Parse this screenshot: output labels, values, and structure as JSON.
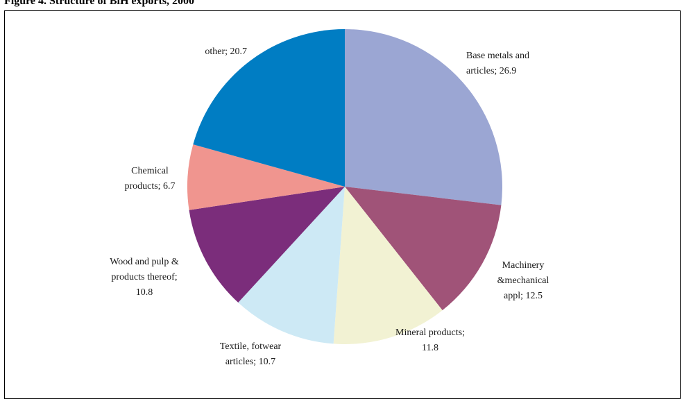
{
  "figure_title": "Figure 4. Structure of BiH exports, 2000",
  "chart_data": {
    "type": "pie",
    "title": "Figure 4. Structure of BiH exports, 2000",
    "start": "12 o'clock",
    "direction": "clockwise",
    "legend": "none",
    "slices": [
      {
        "name": "Base metals and articles",
        "value": 26.9,
        "color": "#9BA6D3",
        "label_lines": [
          "Base metals and",
          "articles; 26.9"
        ],
        "anchor": "start"
      },
      {
        "name": "Machinery &mechanical appl",
        "value": 12.5,
        "color": "#A05378",
        "label_lines": [
          "Machinery",
          "&mechanical",
          "appl; 12.5"
        ],
        "anchor": "middle"
      },
      {
        "name": "Mineral products",
        "value": 11.8,
        "color": "#F2F2D3",
        "label_lines": [
          "Mineral products;",
          "11.8"
        ],
        "anchor": "middle"
      },
      {
        "name": "Textile, fotwear articles",
        "value": 10.7,
        "color": "#CDE9F5",
        "label_lines": [
          "Textile, fotwear",
          "articles; 10.7"
        ],
        "anchor": "middle"
      },
      {
        "name": "Wood and pulp & products thereof",
        "value": 10.8,
        "color": "#7B2D7B",
        "label_lines": [
          "Wood and pulp &",
          "products thereof;",
          "10.8"
        ],
        "anchor": "middle"
      },
      {
        "name": "Chemical products",
        "value": 6.7,
        "color": "#F0958F",
        "label_lines": [
          "Chemical",
          "products; 6.7"
        ],
        "anchor": "middle"
      },
      {
        "name": "other",
        "value": 20.7,
        "color": "#007DC3",
        "label_lines": [
          "other; 20.7"
        ],
        "anchor": "end"
      }
    ]
  }
}
